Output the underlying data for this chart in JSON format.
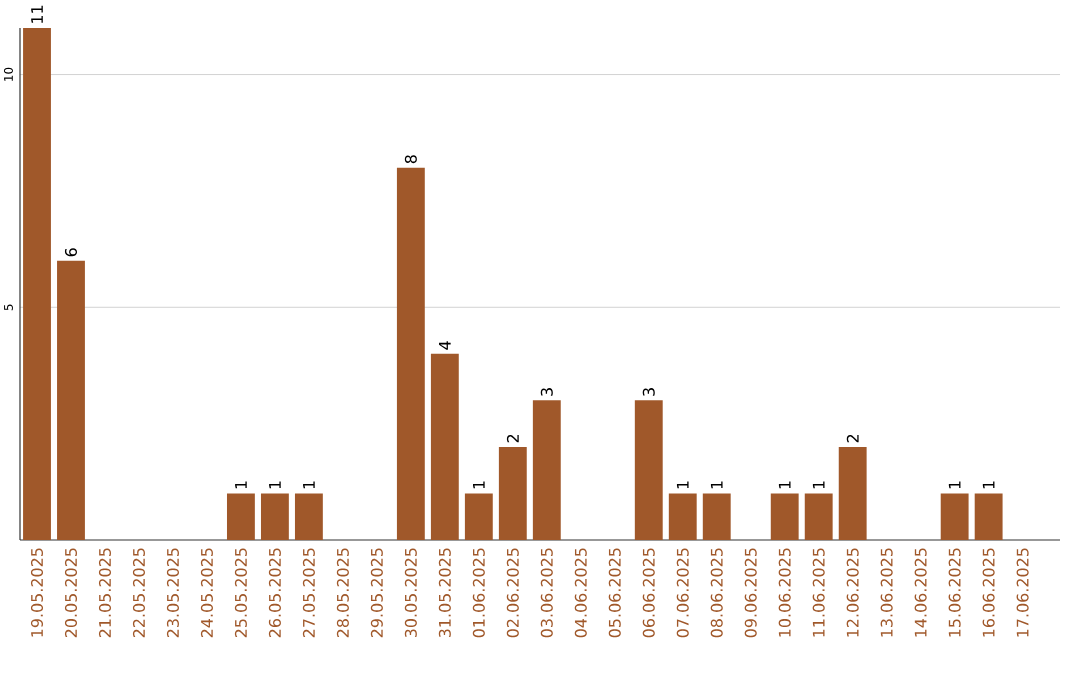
{
  "chart_data": {
    "type": "bar",
    "color": "#a0582a",
    "categories": [
      "19.05.2025",
      "20.05.2025",
      "21.05.2025",
      "22.05.2025",
      "23.05.2025",
      "24.05.2025",
      "25.05.2025",
      "26.05.2025",
      "27.05.2025",
      "28.05.2025",
      "29.05.2025",
      "30.05.2025",
      "31.05.2025",
      "01.06.2025",
      "02.06.2025",
      "03.06.2025",
      "04.06.2025",
      "05.06.2025",
      "06.06.2025",
      "07.06.2025",
      "08.06.2025",
      "09.06.2025",
      "10.06.2025",
      "11.06.2025",
      "12.06.2025",
      "13.06.2025",
      "14.06.2025",
      "15.06.2025",
      "16.06.2025",
      "17.06.2025"
    ],
    "values": [
      11,
      6,
      0,
      0,
      0,
      0,
      1,
      1,
      1,
      0,
      0,
      8,
      4,
      1,
      2,
      3,
      0,
      0,
      3,
      1,
      1,
      0,
      1,
      1,
      2,
      0,
      0,
      1,
      1,
      0
    ],
    "value_labels": [
      "11",
      "6",
      null,
      null,
      null,
      null,
      "1",
      "1",
      "1",
      null,
      null,
      "8",
      "4",
      "1",
      "2",
      "3",
      null,
      null,
      "3",
      "1",
      "1",
      null,
      "1",
      "1",
      "2",
      null,
      null,
      "1",
      "1",
      null
    ],
    "ylim": [
      0,
      11
    ],
    "yticks": [
      5,
      10
    ],
    "grid": "y"
  }
}
